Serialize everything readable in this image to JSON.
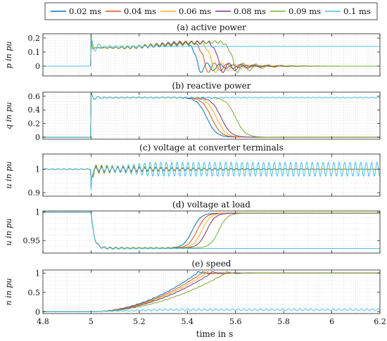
{
  "legend": {
    "entries": [
      {
        "label": "0.02 ms",
        "color": "#0072BD"
      },
      {
        "label": "0.04 ms",
        "color": "#D95319"
      },
      {
        "label": "0.06 ms",
        "color": "#EDB120"
      },
      {
        "label": "0.08 ms",
        "color": "#7E2F8E"
      },
      {
        "label": "0.09 ms",
        "color": "#77AC30"
      },
      {
        "label": "0.1 ms",
        "color": "#4DBEEE"
      }
    ]
  },
  "xaxis": {
    "label": "time in s",
    "range": [
      4.8,
      6.2
    ],
    "ticks": [
      4.8,
      5,
      5.2,
      5.4,
      5.6,
      5.8,
      6,
      6.2
    ],
    "tick_labels": [
      "4.8",
      "5",
      "5.2",
      "5.4",
      "5.6",
      "5.8",
      "6",
      "6.2"
    ]
  },
  "chart_data": [
    {
      "type": "line",
      "title": "(a) active power",
      "ylabel": "p in pu",
      "ylim": [
        -0.07,
        0.23
      ],
      "yticks": [
        0,
        0.1,
        0.2
      ],
      "ytick_labels": [
        "0",
        "0.1",
        "0.2"
      ],
      "grid": true,
      "x_range": [
        4.8,
        6.2
      ],
      "series": [
        {
          "name": "0.02 ms",
          "steady_before": 0,
          "step_time": 5.0,
          "plateau": 0.13,
          "drop_time": 5.43,
          "final": 0.0
        },
        {
          "name": "0.04 ms",
          "steady_before": 0,
          "step_time": 5.0,
          "plateau": 0.13,
          "drop_time": 5.46,
          "final": 0.0
        },
        {
          "name": "0.06 ms",
          "steady_before": 0,
          "step_time": 5.0,
          "plateau": 0.13,
          "drop_time": 5.49,
          "final": 0.0
        },
        {
          "name": "0.08 ms",
          "steady_before": 0,
          "step_time": 5.0,
          "plateau": 0.13,
          "drop_time": 5.52,
          "final": 0.0
        },
        {
          "name": "0.09 ms",
          "steady_before": 0,
          "step_time": 5.0,
          "plateau": 0.13,
          "drop_time": 5.58,
          "final": 0.0
        },
        {
          "name": "0.1 ms",
          "steady_before": 0,
          "step_time": 5.0,
          "plateau": 0.14,
          "drop_time": null,
          "final": 0.14
        }
      ]
    },
    {
      "type": "line",
      "title": "(b) reactive power",
      "ylabel": "q in pu",
      "ylim": [
        -0.03,
        0.66
      ],
      "yticks": [
        0,
        0.2,
        0.4,
        0.6
      ],
      "ytick_labels": [
        "0",
        "0.2",
        "0.4",
        "0.6"
      ],
      "grid": true,
      "x_range": [
        4.8,
        6.2
      ],
      "series": [
        {
          "name": "0.02 ms",
          "steady_before": 0,
          "step_time": 5.0,
          "plateau": 0.58,
          "drop_time": 5.48,
          "final": 0.0
        },
        {
          "name": "0.04 ms",
          "steady_before": 0,
          "step_time": 5.0,
          "plateau": 0.58,
          "drop_time": 5.5,
          "final": 0.0
        },
        {
          "name": "0.06 ms",
          "steady_before": 0,
          "step_time": 5.0,
          "plateau": 0.58,
          "drop_time": 5.52,
          "final": 0.0
        },
        {
          "name": "0.08 ms",
          "steady_before": 0,
          "step_time": 5.0,
          "plateau": 0.58,
          "drop_time": 5.54,
          "final": 0.0
        },
        {
          "name": "0.09 ms",
          "steady_before": 0,
          "step_time": 5.0,
          "plateau": 0.58,
          "drop_time": 5.6,
          "final": 0.0
        },
        {
          "name": "0.1 ms",
          "steady_before": 0,
          "step_time": 5.0,
          "plateau": 0.58,
          "drop_time": null,
          "final": 0.58
        }
      ]
    },
    {
      "type": "line",
      "title": "(c) voltage at converter terminals",
      "ylabel": "u in pu",
      "ylim": [
        0.885,
        1.065
      ],
      "yticks": [
        0.9,
        1
      ],
      "ytick_labels": [
        "0.9",
        "1"
      ],
      "grid": true,
      "x_range": [
        4.8,
        6.2
      ],
      "series": [
        {
          "name": "0.02 ms",
          "nominal": 1.0,
          "disturbance_time": 5.0,
          "osc_amplitude": 0.01,
          "decays": true
        },
        {
          "name": "0.04 ms",
          "nominal": 1.0,
          "disturbance_time": 5.0,
          "osc_amplitude": 0.012,
          "decays": true
        },
        {
          "name": "0.06 ms",
          "nominal": 1.0,
          "disturbance_time": 5.0,
          "osc_amplitude": 0.014,
          "decays": true
        },
        {
          "name": "0.08 ms",
          "nominal": 1.0,
          "disturbance_time": 5.0,
          "osc_amplitude": 0.016,
          "decays": true
        },
        {
          "name": "0.09 ms",
          "nominal": 1.0,
          "disturbance_time": 5.0,
          "osc_amplitude": 0.02,
          "decays": true
        },
        {
          "name": "0.1 ms",
          "nominal": 1.0,
          "disturbance_time": 5.0,
          "osc_amplitude": 0.03,
          "decays": false
        }
      ]
    },
    {
      "type": "line",
      "title": "(d) voltage at load",
      "ylabel": "u in pu",
      "ylim": [
        0.928,
        1.002
      ],
      "yticks": [
        0.95,
        1
      ],
      "ytick_labels": [
        "0.95",
        "1"
      ],
      "grid": true,
      "x_range": [
        4.8,
        6.2
      ],
      "series": [
        {
          "name": "0.02 ms",
          "steady_before": 1.0,
          "dip_time": 5.0,
          "dip_level": 0.937,
          "recover_time": 5.42,
          "final": 0.998
        },
        {
          "name": "0.04 ms",
          "steady_before": 1.0,
          "dip_time": 5.0,
          "dip_level": 0.937,
          "recover_time": 5.44,
          "final": 0.998
        },
        {
          "name": "0.06 ms",
          "steady_before": 1.0,
          "dip_time": 5.0,
          "dip_level": 0.937,
          "recover_time": 5.46,
          "final": 0.998
        },
        {
          "name": "0.08 ms",
          "steady_before": 1.0,
          "dip_time": 5.0,
          "dip_level": 0.937,
          "recover_time": 5.48,
          "final": 0.998
        },
        {
          "name": "0.09 ms",
          "steady_before": 1.0,
          "dip_time": 5.0,
          "dip_level": 0.937,
          "recover_time": 5.53,
          "final": 0.998
        },
        {
          "name": "0.1 ms",
          "steady_before": 1.0,
          "dip_time": 5.0,
          "dip_level": 0.936,
          "recover_time": null,
          "final": 0.936
        }
      ]
    },
    {
      "type": "line",
      "title": "(e) speed",
      "ylabel": "n in pu",
      "ylim": [
        -0.05,
        1.08
      ],
      "yticks": [
        0,
        0.5,
        1
      ],
      "ytick_labels": [
        "0",
        "0.5",
        "1"
      ],
      "grid": true,
      "x_range": [
        4.8,
        6.2
      ],
      "series": [
        {
          "name": "0.02 ms",
          "steady_before": 0,
          "start_time": 5.0,
          "reach_time": 5.44,
          "final": 1.0
        },
        {
          "name": "0.04 ms",
          "steady_before": 0,
          "start_time": 5.0,
          "reach_time": 5.46,
          "final": 1.0
        },
        {
          "name": "0.06 ms",
          "steady_before": 0,
          "start_time": 5.0,
          "reach_time": 5.48,
          "final": 1.0
        },
        {
          "name": "0.08 ms",
          "steady_before": 0,
          "start_time": 5.0,
          "reach_time": 5.5,
          "final": 1.0
        },
        {
          "name": "0.09 ms",
          "steady_before": 0,
          "start_time": 5.0,
          "reach_time": 5.56,
          "final": 1.0
        },
        {
          "name": "0.1 ms",
          "steady_before": 0,
          "start_time": 5.0,
          "reach_time": null,
          "final": 0.05
        }
      ]
    }
  ]
}
